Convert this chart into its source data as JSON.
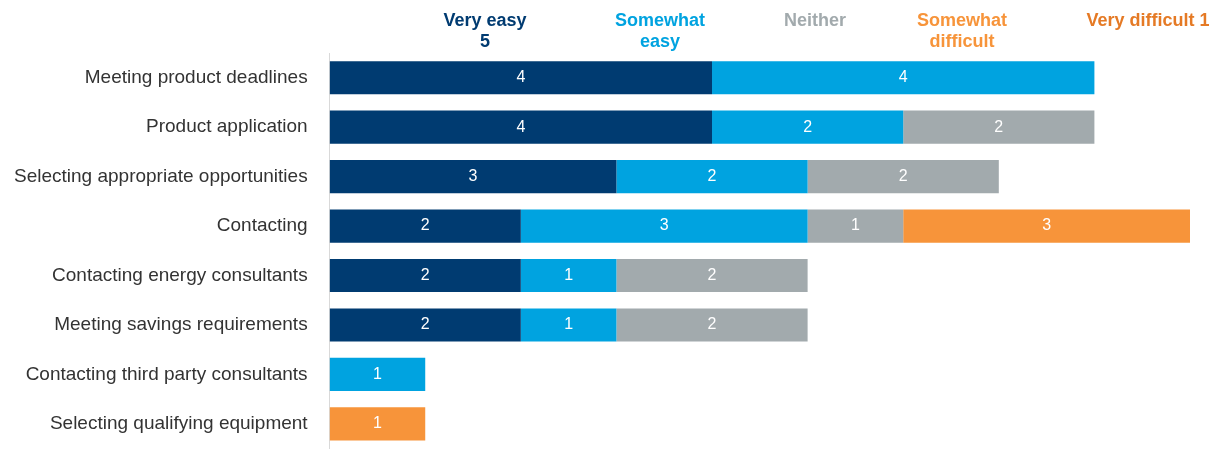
{
  "chart_data": {
    "type": "bar",
    "orientation": "horizontal",
    "stacked": true,
    "data_labels": true,
    "legend": "top",
    "categories": [
      "Meeting product deadlines",
      "Product application",
      "Selecting appropriate opportunities",
      "Contacting",
      "Contacting energy consultants",
      "Meeting savings requirements",
      "Contacting third party consultants",
      "Selecting qualifying equipment"
    ],
    "series": [
      {
        "name": "Very easy 5",
        "color": "#003b71",
        "values": [
          4,
          4,
          3,
          2,
          2,
          2,
          null,
          null
        ]
      },
      {
        "name": "Somewhat easy",
        "color": "#00a3e0",
        "values": [
          4,
          2,
          2,
          3,
          1,
          1,
          1,
          null
        ]
      },
      {
        "name": "Neither",
        "color": "#a2aaad",
        "values": [
          null,
          2,
          2,
          1,
          2,
          2,
          null,
          null
        ]
      },
      {
        "name": "Somewhat difficult",
        "color": "#f7943a",
        "values": [
          null,
          null,
          null,
          3,
          null,
          null,
          null,
          1
        ]
      },
      {
        "name": "Very difficult 1",
        "color": "#e57a25",
        "values": [
          null,
          null,
          null,
          null,
          null,
          null,
          null,
          null
        ]
      }
    ]
  }
}
